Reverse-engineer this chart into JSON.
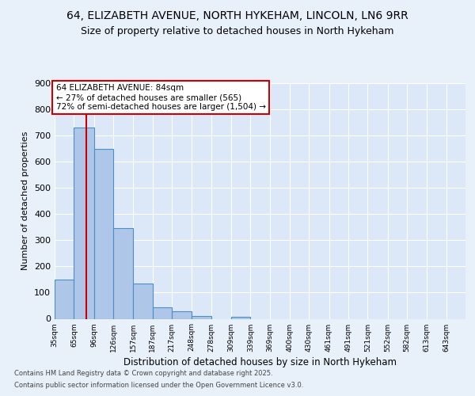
{
  "title1": "64, ELIZABETH AVENUE, NORTH HYKEHAM, LINCOLN, LN6 9RR",
  "title2": "Size of property relative to detached houses in North Hykeham",
  "xlabel": "Distribution of detached houses by size in North Hykeham",
  "ylabel": "Number of detached properties",
  "footnote1": "Contains HM Land Registry data © Crown copyright and database right 2025.",
  "footnote2": "Contains public sector information licensed under the Open Government Licence v3.0.",
  "bin_labels": [
    "35sqm",
    "65sqm",
    "96sqm",
    "126sqm",
    "157sqm",
    "187sqm",
    "217sqm",
    "248sqm",
    "278sqm",
    "309sqm",
    "339sqm",
    "369sqm",
    "400sqm",
    "430sqm",
    "461sqm",
    "491sqm",
    "521sqm",
    "552sqm",
    "582sqm",
    "613sqm",
    "643sqm"
  ],
  "bar_values": [
    150,
    730,
    650,
    345,
    135,
    45,
    30,
    10,
    0,
    8,
    0,
    0,
    0,
    0,
    0,
    0,
    0,
    0,
    0,
    0,
    0
  ],
  "bar_color": "#aec6e8",
  "bar_edge_color": "#4d8fc4",
  "red_line_x": 84,
  "bin_edges_sqm": [
    35,
    65,
    96,
    126,
    157,
    187,
    217,
    248,
    278,
    309,
    339,
    369,
    400,
    430,
    461,
    491,
    521,
    552,
    582,
    613,
    643
  ],
  "annotation_title": "64 ELIZABETH AVENUE: 84sqm",
  "annotation_line1": "← 27% of detached houses are smaller (565)",
  "annotation_line2": "72% of semi-detached houses are larger (1,504) →",
  "annotation_box_color": "#ffffff",
  "annotation_box_edge": "#cc0000",
  "ylim": [
    0,
    900
  ],
  "yticks": [
    0,
    100,
    200,
    300,
    400,
    500,
    600,
    700,
    800,
    900
  ],
  "bg_color": "#e8f0fa",
  "plot_bg": "#dce8f8",
  "grid_color": "#ffffff",
  "title_fontsize": 10,
  "subtitle_fontsize": 9
}
